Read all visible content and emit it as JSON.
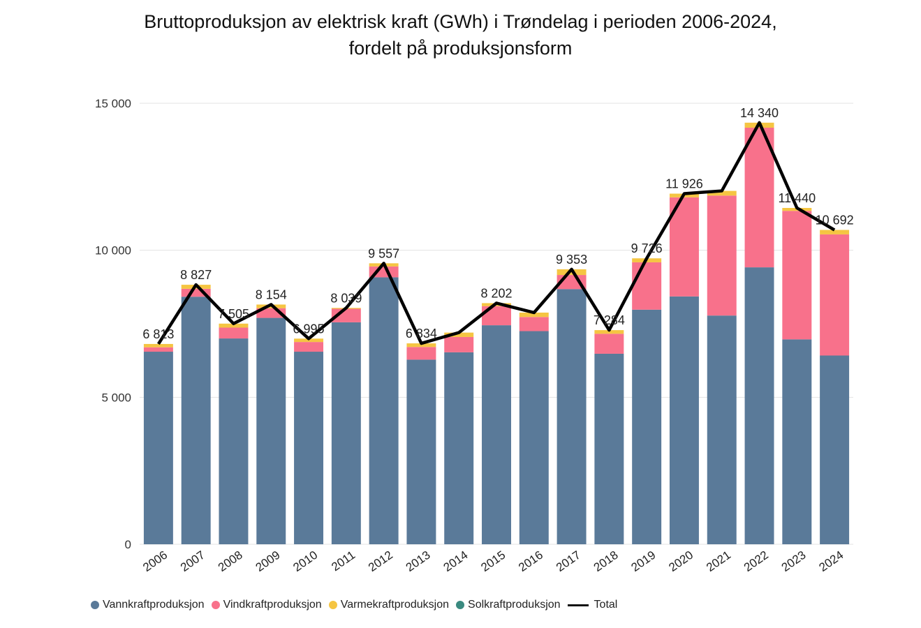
{
  "chart_data": {
    "type": "bar",
    "title": "Bruttoproduksjon av elektrisk kraft (GWh) i Trøndelag i perioden 2006-2024,",
    "subtitle": "fordelt på produksjonsform",
    "xlabel": "",
    "ylabel": "",
    "ylim": [
      0,
      15000
    ],
    "yticks": [
      0,
      5000,
      10000,
      15000
    ],
    "ytick_labels": [
      "0",
      "5 000",
      "10 000",
      "15 000"
    ],
    "grid": true,
    "legend_position": "bottom-left",
    "categories": [
      "2006",
      "2007",
      "2008",
      "2009",
      "2010",
      "2011",
      "2012",
      "2013",
      "2014",
      "2015",
      "2016",
      "2017",
      "2018",
      "2019",
      "2020",
      "2021",
      "2022",
      "2023",
      "2024"
    ],
    "series": [
      {
        "name": "Vannkraftproduksjon",
        "color": "#5a7a99",
        "kind": "bar",
        "values": [
          6550,
          8420,
          7000,
          7700,
          6550,
          7550,
          9080,
          6280,
          6530,
          7450,
          7250,
          8680,
          6480,
          7980,
          8430,
          7780,
          9420,
          6970,
          6420
        ]
      },
      {
        "name": "Vindkraftproduksjon",
        "color": "#f8718b",
        "kind": "bar",
        "values": [
          150,
          270,
          370,
          330,
          330,
          460,
          370,
          430,
          520,
          650,
          480,
          480,
          680,
          1610,
          3370,
          4080,
          4750,
          4370,
          4120
        ]
      },
      {
        "name": "Varmekraftproduksjon",
        "color": "#f5c542",
        "kind": "bar",
        "values": [
          113,
          137,
          135,
          124,
          115,
          29,
          107,
          124,
          150,
          102,
          150,
          193,
          124,
          136,
          126,
          160,
          170,
          100,
          152
        ]
      },
      {
        "name": "Solkraftproduksjon",
        "color": "#3a8a80",
        "kind": "bar",
        "values": [
          0,
          0,
          0,
          0,
          0,
          0,
          0,
          0,
          0,
          0,
          0,
          0,
          0,
          0,
          0,
          0,
          0,
          0,
          0
        ]
      },
      {
        "name": "Total",
        "color": "#000000",
        "kind": "line",
        "values": [
          6813,
          8827,
          7505,
          8154,
          6995,
          8039,
          9557,
          6834,
          7200,
          8202,
          7880,
          9353,
          7284,
          9726,
          11926,
          12020,
          14340,
          11440,
          10692
        ]
      }
    ],
    "data_labels": [
      {
        "index": 0,
        "text": "6 813"
      },
      {
        "index": 1,
        "text": "8 827"
      },
      {
        "index": 2,
        "text": "7 505"
      },
      {
        "index": 3,
        "text": "8 154"
      },
      {
        "index": 4,
        "text": "6 995"
      },
      {
        "index": 5,
        "text": "8 039"
      },
      {
        "index": 6,
        "text": "9 557"
      },
      {
        "index": 7,
        "text": "6 834"
      },
      {
        "index": 9,
        "text": "8 202"
      },
      {
        "index": 11,
        "text": "9 353"
      },
      {
        "index": 12,
        "text": "7 284"
      },
      {
        "index": 13,
        "text": "9 726"
      },
      {
        "index": 14,
        "text": "11 926"
      },
      {
        "index": 16,
        "text": "14 340"
      },
      {
        "index": 17,
        "text": "11 440"
      },
      {
        "index": 18,
        "text": "10 692"
      }
    ]
  }
}
